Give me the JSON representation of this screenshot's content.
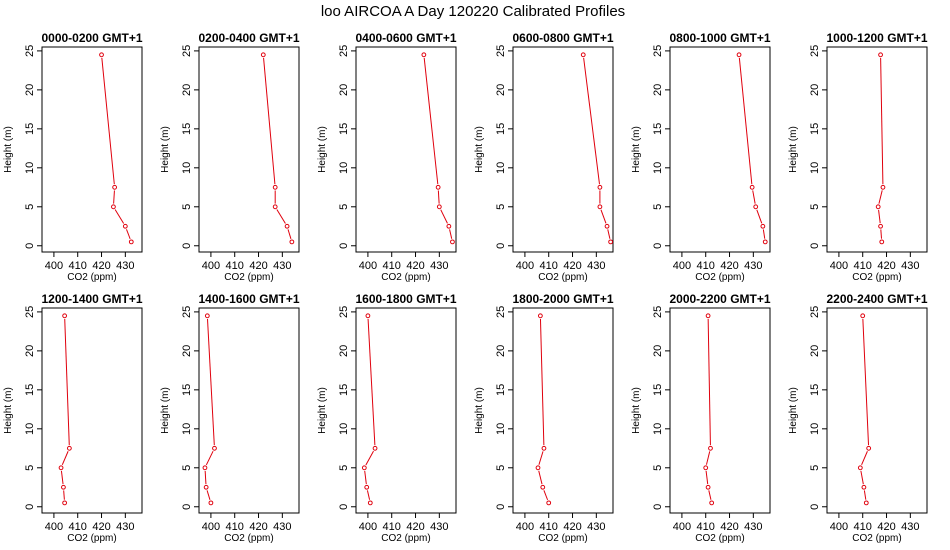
{
  "title": "loo AIRCOA A  Day 120220  Calibrated Profiles",
  "chart_data": {
    "type": "line",
    "layout": "2x6 panel grid",
    "xlabel": "CO2 (ppm)",
    "ylabel": "Height (m)",
    "xlim": [
      395,
      437
    ],
    "ylim": [
      -0.8,
      25.5
    ],
    "xticks": [
      400,
      410,
      420,
      430
    ],
    "yticks": [
      0,
      5,
      10,
      15,
      20,
      25
    ],
    "grid": false,
    "line_color": "#e0000d",
    "panels": [
      {
        "title": "0000-0200  GMT+1",
        "x": [
          420.0,
          425.5,
          425.0,
          430.0,
          432.5
        ],
        "y": [
          24.5,
          7.5,
          5.0,
          2.5,
          0.5
        ]
      },
      {
        "title": "0200-0400  GMT+1",
        "x": [
          422.0,
          427.0,
          427.0,
          432.0,
          434.0
        ],
        "y": [
          24.5,
          7.5,
          5.0,
          2.5,
          0.5
        ]
      },
      {
        "title": "0400-0600  GMT+1",
        "x": [
          423.5,
          429.5,
          430.0,
          434.0,
          435.5
        ],
        "y": [
          24.5,
          7.5,
          5.0,
          2.5,
          0.5
        ]
      },
      {
        "title": "0600-0800  GMT+1",
        "x": [
          424.5,
          431.5,
          431.5,
          434.5,
          436.0
        ],
        "y": [
          24.5,
          7.5,
          5.0,
          2.5,
          0.5
        ]
      },
      {
        "title": "0800-1000  GMT+1",
        "x": [
          424.0,
          429.5,
          431.0,
          434.0,
          435.0
        ],
        "y": [
          24.5,
          7.5,
          5.0,
          2.5,
          0.5
        ]
      },
      {
        "title": "1000-1200  GMT+1",
        "x": [
          417.5,
          418.5,
          416.5,
          417.5,
          418.0
        ],
        "y": [
          24.5,
          7.5,
          5.0,
          2.5,
          0.5
        ]
      },
      {
        "title": "1200-1400  GMT+1",
        "x": [
          404.5,
          406.5,
          403.0,
          404.0,
          404.5
        ],
        "y": [
          24.5,
          7.5,
          5.0,
          2.5,
          0.5
        ]
      },
      {
        "title": "1400-1600  GMT+1",
        "x": [
          398.5,
          401.5,
          397.5,
          398.0,
          400.0
        ],
        "y": [
          24.5,
          7.5,
          5.0,
          2.5,
          0.5
        ]
      },
      {
        "title": "1600-1800  GMT+1",
        "x": [
          400.0,
          403.0,
          398.5,
          399.5,
          401.0
        ],
        "y": [
          24.5,
          7.5,
          5.0,
          2.5,
          0.5
        ]
      },
      {
        "title": "1800-2000  GMT+1",
        "x": [
          406.5,
          408.0,
          405.5,
          407.5,
          410.0
        ],
        "y": [
          24.5,
          7.5,
          5.0,
          2.5,
          0.5
        ]
      },
      {
        "title": "2000-2200  GMT+1",
        "x": [
          411.0,
          412.0,
          410.0,
          411.0,
          412.5
        ],
        "y": [
          24.5,
          7.5,
          5.0,
          2.5,
          0.5
        ]
      },
      {
        "title": "2200-2400  GMT+1",
        "x": [
          410.0,
          412.5,
          409.0,
          410.5,
          411.5
        ],
        "y": [
          24.5,
          7.5,
          5.0,
          2.5,
          0.5
        ]
      }
    ]
  }
}
